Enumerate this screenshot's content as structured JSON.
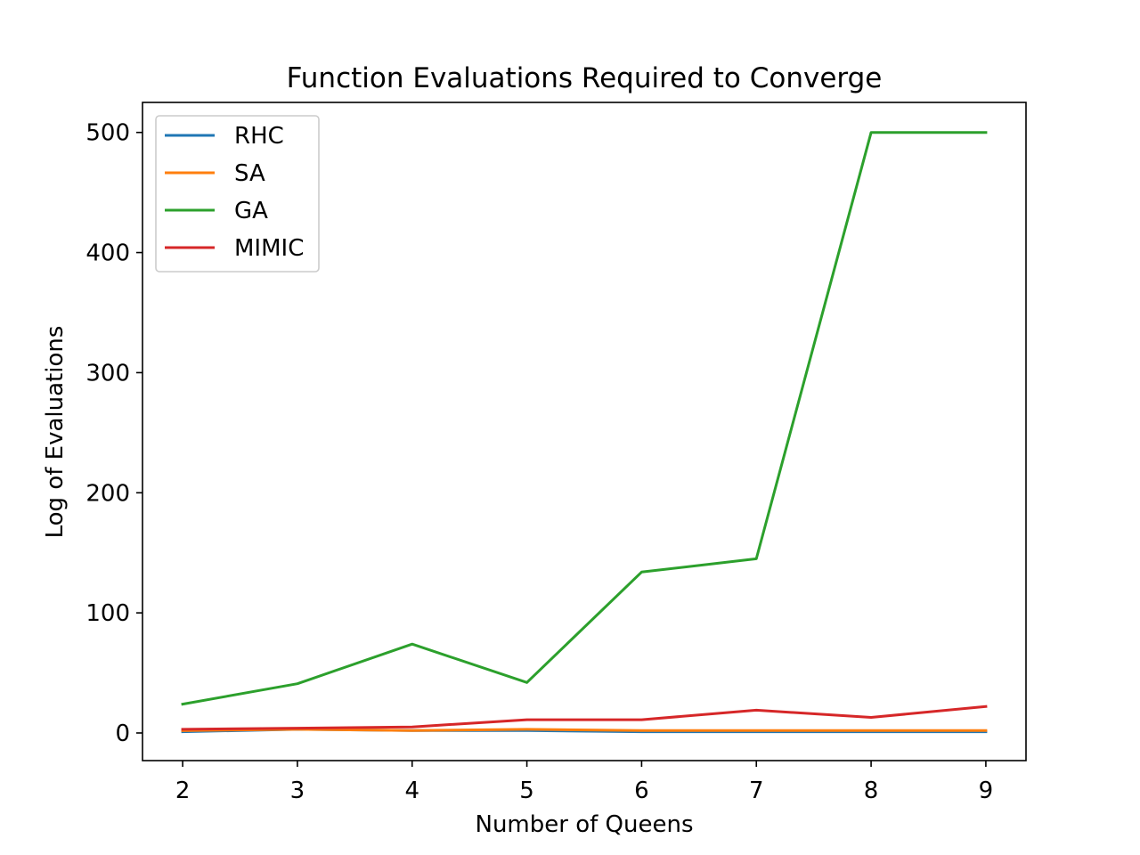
{
  "chart_data": {
    "type": "line",
    "title": "Function Evaluations Required to Converge",
    "xlabel": "Number of Queens",
    "ylabel": "Log of Evaluations",
    "x": [
      2,
      3,
      4,
      5,
      6,
      7,
      8,
      9
    ],
    "xlim": [
      1.65,
      9.35
    ],
    "ylim": [
      -23,
      525
    ],
    "xticks": [
      "2",
      "3",
      "4",
      "5",
      "6",
      "7",
      "8",
      "9"
    ],
    "yticks": [
      0,
      100,
      200,
      300,
      400,
      500
    ],
    "ytick_labels": [
      "0",
      "100",
      "200",
      "300",
      "400",
      "500"
    ],
    "grid": false,
    "legend_position": "top-left",
    "series": [
      {
        "name": "RHC",
        "color": "#1f77b4",
        "values": [
          1,
          3,
          2,
          2,
          1,
          1,
          1,
          1
        ]
      },
      {
        "name": "SA",
        "color": "#ff7f0e",
        "values": [
          2,
          3,
          2,
          3,
          2,
          2,
          2,
          2
        ]
      },
      {
        "name": "GA",
        "color": "#2ca02c",
        "values": [
          24,
          41,
          74,
          42,
          134,
          145,
          500,
          500
        ]
      },
      {
        "name": "MIMIC",
        "color": "#d62728",
        "values": [
          3,
          4,
          5,
          11,
          11,
          19,
          13,
          22
        ]
      }
    ]
  }
}
